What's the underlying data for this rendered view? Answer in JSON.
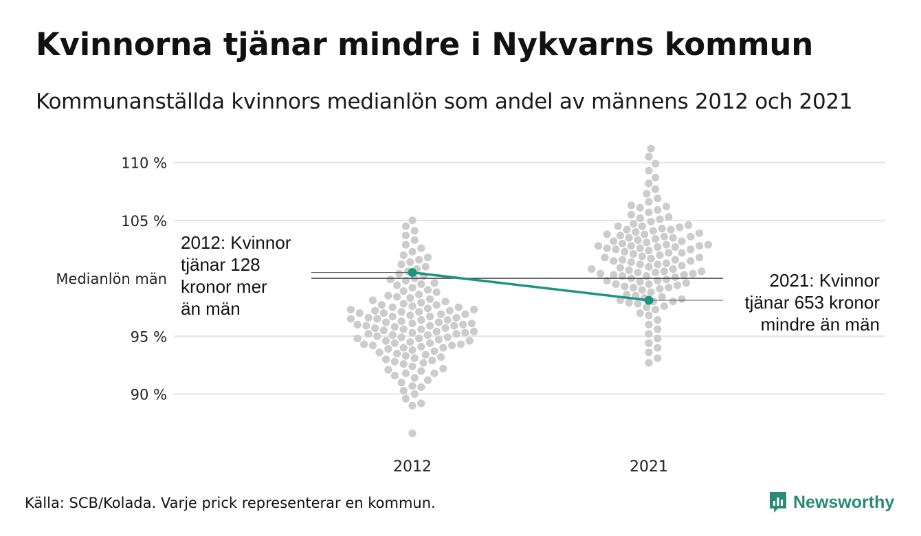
{
  "header": {
    "title": "Kvinnorna tjänar mindre i Nykvarns kommun",
    "subtitle": "Kommunanställda kvinnors medianlön som andel av männens 2012 och 2021"
  },
  "footer": {
    "source": "Källa: SCB/Kolada. Varje prick representerar en kommun.",
    "brand": "Newsworthy"
  },
  "colors": {
    "dots": "#cccccc",
    "highlight": "#1b9582",
    "grid": "#e3e3e3",
    "reference_line": "#333333",
    "brand": "#2a8a76"
  },
  "chart_data": {
    "type": "scatter",
    "subtype": "beeswarm",
    "title": "Kvinnorna tjänar mindre i Nykvarns kommun",
    "subtitle": "Kommunanställda kvinnors medianlön som andel av männens 2012 och 2021",
    "categories": [
      "2012",
      "2021"
    ],
    "ylim": [
      86,
      111.5
    ],
    "yticks": [
      {
        "value": 90,
        "label": "90 %"
      },
      {
        "value": 95,
        "label": "95 %"
      },
      {
        "value": 100,
        "label": "Medianlön män"
      },
      {
        "value": 105,
        "label": "105 %"
      },
      {
        "value": 110,
        "label": "110 %"
      }
    ],
    "reference_line": {
      "value": 100,
      "label": "Medianlön män"
    },
    "grid": true,
    "series": [
      {
        "category": "2012",
        "values": [
          86.6,
          89.0,
          89.2,
          89.6,
          90.0,
          90.3,
          90.6,
          90.7,
          91.0,
          91.2,
          91.4,
          91.6,
          91.8,
          92.0,
          92.2,
          92.4,
          92.6,
          92.8,
          93.0,
          93.1,
          93.3,
          93.5,
          93.7,
          93.9,
          94.0,
          94.1,
          94.2,
          94.3,
          94.4,
          94.5,
          94.6,
          94.7,
          94.8,
          94.9,
          95.0,
          95.1,
          95.2,
          95.3,
          95.4,
          95.5,
          95.6,
          95.7,
          95.8,
          95.9,
          96.0,
          96.1,
          96.2,
          96.3,
          96.4,
          96.5,
          96.6,
          96.7,
          96.8,
          96.9,
          97.0,
          97.1,
          97.2,
          97.3,
          97.4,
          97.5,
          97.6,
          97.7,
          97.8,
          97.9,
          98.0,
          98.1,
          98.2,
          98.4,
          98.6,
          98.8,
          99.0,
          99.2,
          99.4,
          99.6,
          99.8,
          100.0,
          100.2,
          100.4,
          100.6,
          100.8,
          101.0,
          101.2,
          101.4,
          101.6,
          101.8,
          102.0,
          102.3,
          102.6,
          102.9,
          103.3,
          103.7,
          104.1,
          104.5,
          105.0,
          94.2,
          95.6,
          96.4,
          97.1,
          97.5,
          94.9,
          93.8,
          95.9,
          96.9,
          92.7,
          91.8,
          93.4,
          94.6,
          95.3,
          96.1,
          97.7,
          98.3,
          96.7,
          95.1,
          94.0,
          93.6,
          92.1,
          98.9,
          99.5,
          97.3,
          96.2,
          95.7,
          94.4,
          95.9,
          96.5,
          97.0,
          94.8,
          93.2,
          92.9,
          99.9,
          98.5,
          96.6,
          95.4,
          94.3,
          97.2,
          96.0,
          95.2
        ],
        "highlight": {
          "label": "Nykvarn",
          "value": 100.5
        }
      },
      {
        "category": "2021",
        "values": [
          92.7,
          93.1,
          93.6,
          94.0,
          94.4,
          94.8,
          95.2,
          95.6,
          96.0,
          96.4,
          96.8,
          97.0,
          97.3,
          97.6,
          97.8,
          98.0,
          98.2,
          98.4,
          98.6,
          98.8,
          99.0,
          99.1,
          99.2,
          99.3,
          99.4,
          99.5,
          99.6,
          99.7,
          99.8,
          99.9,
          100.0,
          100.1,
          100.2,
          100.3,
          100.4,
          100.5,
          100.6,
          100.7,
          100.8,
          100.9,
          101.0,
          101.1,
          101.2,
          101.3,
          101.4,
          101.5,
          101.6,
          101.7,
          101.8,
          101.9,
          102.0,
          102.1,
          102.2,
          102.3,
          102.4,
          102.5,
          102.6,
          102.7,
          102.8,
          102.9,
          103.0,
          103.1,
          103.2,
          103.3,
          103.4,
          103.5,
          103.6,
          103.7,
          103.8,
          103.9,
          104.0,
          104.1,
          104.2,
          104.3,
          104.4,
          104.5,
          104.7,
          104.9,
          105.1,
          105.3,
          105.5,
          105.7,
          105.9,
          106.1,
          106.3,
          106.6,
          106.9,
          107.3,
          107.7,
          108.2,
          108.7,
          109.3,
          109.9,
          110.5,
          111.2,
          102.9,
          102.8,
          102.7,
          100.4,
          100.3,
          100.2,
          98.3,
          98.1,
          98.0,
          97.9,
          100.5,
          101.5,
          102.5,
          103.5,
          104.5,
          99.5,
          98.5,
          97.5,
          101.2,
          102.2,
          103.2,
          104.2,
          99.2,
          100.8,
          101.8,
          102.8,
          103.8,
          105.2,
          106.2,
          99.8,
          100.6,
          101.6,
          102.6,
          103.6,
          104.6
        ],
        "highlight": {
          "label": "Nykvarn",
          "value": 98.1
        }
      }
    ],
    "annotations": [
      {
        "category": "2012",
        "side": "left",
        "lines": [
          "2012: Kvinnor",
          "tjänar 128",
          "kronor mer",
          "än män"
        ]
      },
      {
        "category": "2021",
        "side": "right",
        "lines": [
          "2021: Kvinnor",
          "tjänar 653 kronor",
          "mindre än män"
        ]
      }
    ]
  }
}
